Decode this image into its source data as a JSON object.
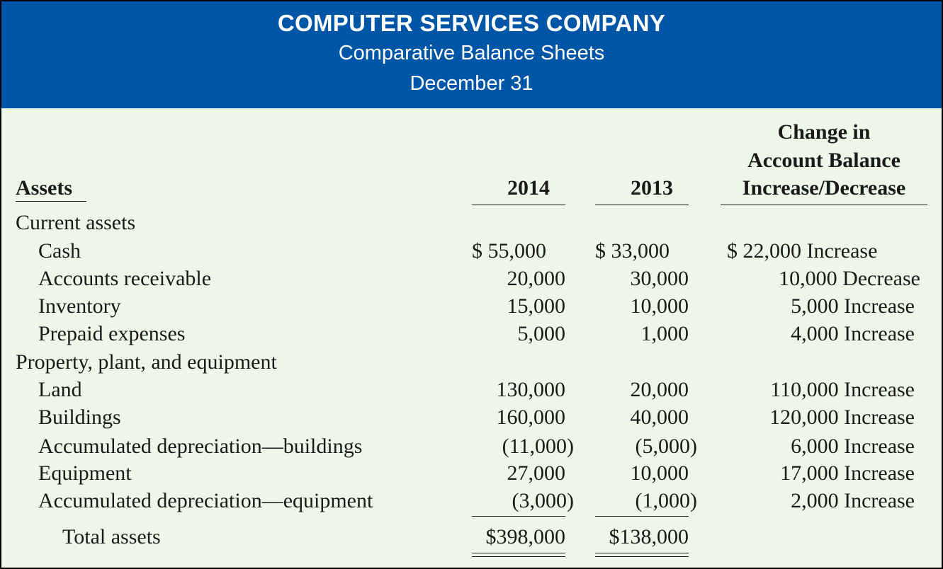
{
  "header": {
    "company": "COMPUTER SERVICES COMPANY",
    "statement": "Comparative Balance Sheets",
    "date": "December 31"
  },
  "columns": {
    "assets": "Assets",
    "y2014": "2014",
    "y2013": "2013",
    "change_line1": "Change in",
    "change_line2": "Account Balance",
    "change_line3": "Increase/Decrease"
  },
  "sections": {
    "current": "Current assets",
    "ppe": "Property, plant, and equipment"
  },
  "rows": [
    {
      "label": "Cash",
      "y2014": "$  55,000",
      "y2013": "$  33,000",
      "change": "$  22,000 Increase"
    },
    {
      "label": "Accounts receivable",
      "y2014": "20,000",
      "y2013": "30,000",
      "change": "10,000 Decrease"
    },
    {
      "label": "Inventory",
      "y2014": "15,000",
      "y2013": "10,000",
      "change": "5,000 Increase"
    },
    {
      "label": "Prepaid expenses",
      "y2014": "5,000",
      "y2013": "1,000",
      "change": "4,000 Increase"
    },
    {
      "label": "Land",
      "y2014": "130,000",
      "y2013": "20,000",
      "change": "110,000 Increase"
    },
    {
      "label": "Buildings",
      "y2014": "160,000",
      "y2013": "40,000",
      "change": "120,000 Increase"
    },
    {
      "label": "Accumulated depreciation—buildings",
      "y2014": "(11,000)",
      "y2013": "(5,000)",
      "change": "6,000 Increase"
    },
    {
      "label": "Equipment",
      "y2014": "27,000",
      "y2013": "10,000",
      "change": "17,000 Increase"
    },
    {
      "label": "Accumulated depreciation—equipment",
      "y2014": "(3,000)",
      "y2013": "(1,000)",
      "change": "2,000 Increase"
    }
  ],
  "total": {
    "label": "Total assets",
    "y2014": "$398,000",
    "y2013": "$138,000"
  }
}
